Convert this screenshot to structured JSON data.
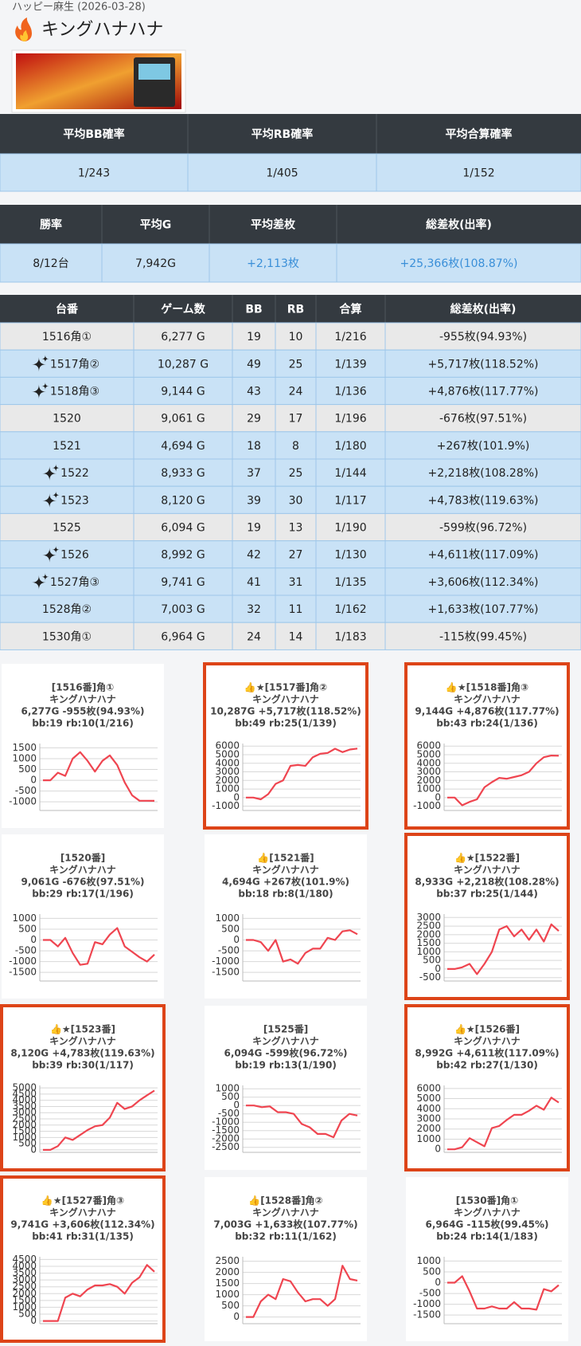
{
  "header": {
    "subtitle": "ハッピー麻生 (2026-03-28)",
    "title": "キングハナハナ"
  },
  "summary_rates": {
    "columns": [
      "平均BB確率",
      "平均RB確率",
      "平均合算確率"
    ],
    "row": [
      "1/243",
      "1/405",
      "1/152"
    ],
    "row_color": "#c9e2f6"
  },
  "summary_results": {
    "columns": [
      "勝率",
      "平均G",
      "平均差枚",
      "総差枚(出率)"
    ],
    "row": [
      "8/12台",
      "7,942G",
      "+2,113枚",
      "+25,366枚(108.87%)"
    ],
    "text_colors": [
      "#222222",
      "#222222",
      "#3a8fd8",
      "#3a8fd8"
    ],
    "row_color": "#c9e2f6"
  },
  "machines": {
    "columns": [
      "台番",
      "ゲーム数",
      "BB",
      "RB",
      "合算",
      "総差枚(出率)"
    ],
    "rows": [
      {
        "cells": [
          "1516角①",
          "6,277 G",
          "19",
          "10",
          "1/216",
          "-955枚(94.93%)"
        ],
        "color": "#e9e9e9",
        "icon": false
      },
      {
        "cells": [
          "1517角②",
          "10,287 G",
          "49",
          "25",
          "1/139",
          "+5,717枚(118.52%)"
        ],
        "color": "#c9e2f6",
        "icon": true
      },
      {
        "cells": [
          "1518角③",
          "9,144 G",
          "43",
          "24",
          "1/136",
          "+4,876枚(117.77%)"
        ],
        "color": "#c9e2f6",
        "icon": true
      },
      {
        "cells": [
          "1520",
          "9,061 G",
          "29",
          "17",
          "1/196",
          "-676枚(97.51%)"
        ],
        "color": "#e9e9e9",
        "icon": false
      },
      {
        "cells": [
          "1521",
          "4,694 G",
          "18",
          "8",
          "1/180",
          "+267枚(101.9%)"
        ],
        "color": "#c9e2f6",
        "icon": false
      },
      {
        "cells": [
          "1522",
          "8,933 G",
          "37",
          "25",
          "1/144",
          "+2,218枚(108.28%)"
        ],
        "color": "#c9e2f6",
        "icon": true
      },
      {
        "cells": [
          "1523",
          "8,120 G",
          "39",
          "30",
          "1/117",
          "+4,783枚(119.63%)"
        ],
        "color": "#c9e2f6",
        "icon": true
      },
      {
        "cells": [
          "1525",
          "6,094 G",
          "19",
          "13",
          "1/190",
          "-599枚(96.72%)"
        ],
        "color": "#e9e9e9",
        "icon": false
      },
      {
        "cells": [
          "1526",
          "8,992 G",
          "42",
          "27",
          "1/130",
          "+4,611枚(117.09%)"
        ],
        "color": "#c9e2f6",
        "icon": true
      },
      {
        "cells": [
          "1527角③",
          "9,741 G",
          "41",
          "31",
          "1/135",
          "+3,606枚(112.34%)"
        ],
        "color": "#c9e2f6",
        "icon": true
      },
      {
        "cells": [
          "1528角②",
          "7,003 G",
          "32",
          "11",
          "1/162",
          "+1,633枚(107.77%)"
        ],
        "color": "#c9e2f6",
        "icon": false
      },
      {
        "cells": [
          "1530角①",
          "6,964 G",
          "24",
          "14",
          "1/183",
          "-115枚(99.45%)"
        ],
        "color": "#e9e9e9",
        "icon": false
      }
    ]
  },
  "chart_data": [
    {
      "type": "line",
      "title": "[1516番]角①",
      "subtitle": "キングハナハナ",
      "stats": "6,277G -955枚(94.93%)",
      "detail": "bb:19 rb:10(1/216)",
      "highlight": false,
      "color": "#ef4550",
      "grid": true,
      "values": [
        0,
        0,
        350,
        200,
        1000,
        1300,
        900,
        400,
        900,
        1150,
        700,
        -100,
        -700,
        -950,
        -950,
        -955
      ],
      "ylim": [
        -1400,
        1700
      ],
      "yticks": [
        1500,
        1000,
        500,
        0,
        -500,
        -1000
      ]
    },
    {
      "type": "line",
      "title": "👍★[1517番]角②",
      "subtitle": "キングハナハナ",
      "stats": "10,287G +5,717枚(118.52%)",
      "detail": "bb:49 rb:25(1/139)",
      "highlight": true,
      "color": "#ef4550",
      "grid": true,
      "values": [
        0,
        0,
        -200,
        400,
        1600,
        2000,
        3700,
        3800,
        3700,
        4700,
        5100,
        5200,
        5700,
        5300,
        5600,
        5717
      ],
      "ylim": [
        -1500,
        6300
      ],
      "yticks": [
        6000,
        5000,
        4000,
        3000,
        2000,
        1000,
        0,
        -1000
      ]
    },
    {
      "type": "line",
      "title": "👍★[1518番]角③",
      "subtitle": "キングハナハナ",
      "stats": "9,144G +4,876枚(117.77%)",
      "detail": "bb:43 rb:24(1/136)",
      "highlight": true,
      "color": "#ef4550",
      "grid": true,
      "values": [
        0,
        0,
        -900,
        -500,
        -200,
        1200,
        1800,
        2300,
        2200,
        2400,
        2600,
        3000,
        4000,
        4700,
        4900,
        4876
      ],
      "ylim": [
        -1500,
        6300
      ],
      "yticks": [
        6000,
        5000,
        4000,
        3000,
        2000,
        1000,
        0,
        -1000
      ]
    },
    {
      "type": "line",
      "title": "[1520番]",
      "subtitle": "キングハナハナ",
      "stats": "9,061G -676枚(97.51%)",
      "detail": "bb:29 rb:17(1/196)",
      "highlight": false,
      "color": "#ef4550",
      "grid": true,
      "values": [
        0,
        0,
        -300,
        100,
        -600,
        -1150,
        -1100,
        -100,
        -200,
        250,
        550,
        -300,
        -550,
        -800,
        -1000,
        -676
      ],
      "ylim": [
        -1900,
        1200
      ],
      "yticks": [
        1000,
        500,
        0,
        -500,
        -1000,
        -1500
      ]
    },
    {
      "type": "line",
      "title": "👍[1521番]",
      "subtitle": "キングハナハナ",
      "stats": "4,694G +267枚(101.9%)",
      "detail": "bb:18 rb:8(1/180)",
      "highlight": false,
      "color": "#ef4550",
      "grid": true,
      "values": [
        0,
        0,
        -100,
        -500,
        0,
        -1000,
        -900,
        -1100,
        -600,
        -400,
        -400,
        100,
        0,
        400,
        450,
        267
      ],
      "ylim": [
        -1900,
        1200
      ],
      "yticks": [
        1000,
        500,
        0,
        -500,
        -1000,
        -1500
      ]
    },
    {
      "type": "line",
      "title": "👍★[1522番]",
      "subtitle": "キングハナハナ",
      "stats": "8,933G +2,218枚(108.28%)",
      "detail": "bb:37 rb:25(1/144)",
      "highlight": true,
      "color": "#ef4550",
      "grid": true,
      "values": [
        0,
        0,
        100,
        300,
        -300,
        300,
        1000,
        2300,
        2500,
        1900,
        2300,
        1700,
        2300,
        1600,
        2600,
        2218
      ],
      "ylim": [
        -700,
        3200
      ],
      "yticks": [
        3000,
        2500,
        2000,
        1500,
        1000,
        500,
        0,
        -500
      ]
    },
    {
      "type": "line",
      "title": "👍★[1523番]",
      "subtitle": "キングハナハナ",
      "stats": "8,120G +4,783枚(119.63%)",
      "detail": "bb:39 rb:30(1/117)",
      "highlight": true,
      "color": "#ef4550",
      "grid": true,
      "values": [
        0,
        0,
        300,
        1000,
        800,
        1200,
        1600,
        1900,
        2000,
        2600,
        3800,
        3300,
        3500,
        4000,
        4400,
        4783
      ],
      "ylim": [
        -200,
        5200
      ],
      "yticks": [
        5000,
        4500,
        4000,
        3500,
        3000,
        2500,
        2000,
        1500,
        1000,
        500,
        0
      ]
    },
    {
      "type": "line",
      "title": "[1525番]",
      "subtitle": "キングハナハナ",
      "stats": "6,094G -599枚(96.72%)",
      "detail": "bb:19 rb:13(1/190)",
      "highlight": false,
      "color": "#ef4550",
      "grid": true,
      "values": [
        0,
        0,
        -100,
        -50,
        -400,
        -400,
        -500,
        -1100,
        -1300,
        -1700,
        -1700,
        -1900,
        -900,
        -500,
        -599
      ],
      "ylim": [
        -2800,
        1200
      ],
      "yticks": [
        1000,
        500,
        0,
        -500,
        -1000,
        -1500,
        -2000,
        -2500
      ]
    },
    {
      "type": "line",
      "title": "👍★[1526番]",
      "subtitle": "キングハナハナ",
      "stats": "8,992G +4,611枚(117.09%)",
      "detail": "bb:42 rb:27(1/130)",
      "highlight": true,
      "color": "#ef4550",
      "grid": true,
      "values": [
        0,
        0,
        200,
        1100,
        700,
        300,
        2100,
        2300,
        2900,
        3400,
        3400,
        3800,
        4300,
        3900,
        5100,
        4611
      ],
      "ylim": [
        -300,
        6300
      ],
      "yticks": [
        6000,
        5000,
        4000,
        3000,
        2000,
        1000,
        0
      ]
    },
    {
      "type": "line",
      "title": "👍★[1527番]角③",
      "subtitle": "キングハナハナ",
      "stats": "9,741G +3,606枚(112.34%)",
      "detail": "bb:41 rb:31(1/135)",
      "highlight": true,
      "color": "#ef4550",
      "grid": true,
      "values": [
        0,
        0,
        0,
        1700,
        2000,
        1800,
        2300,
        2600,
        2600,
        2700,
        2500,
        2000,
        2800,
        3200,
        4100,
        3606
      ],
      "ylim": [
        -200,
        4700
      ],
      "yticks": [
        4500,
        4000,
        3500,
        3000,
        2500,
        2000,
        1500,
        1000,
        500,
        0
      ]
    },
    {
      "type": "line",
      "title": "👍[1528番]角②",
      "subtitle": "キングハナハナ",
      "stats": "7,003G +1,633枚(107.77%)",
      "detail": "bb:32 rb:11(1/162)",
      "highlight": false,
      "color": "#ef4550",
      "grid": true,
      "values": [
        0,
        0,
        700,
        1000,
        800,
        1700,
        1600,
        1100,
        700,
        800,
        800,
        500,
        800,
        2300,
        1700,
        1633
      ],
      "ylim": [
        -300,
        2700
      ],
      "yticks": [
        2500,
        2000,
        1500,
        1000,
        500,
        0
      ]
    },
    {
      "type": "line",
      "title": "[1530番]角①",
      "subtitle": "キングハナハナ",
      "stats": "6,964G -115枚(99.45%)",
      "detail": "bb:24 rb:14(1/183)",
      "highlight": false,
      "color": "#ef4550",
      "grid": true,
      "values": [
        0,
        0,
        300,
        -400,
        -1200,
        -1200,
        -1100,
        -1200,
        -1200,
        -900,
        -1200,
        -1200,
        -1250,
        -300,
        -400,
        -115
      ],
      "ylim": [
        -1900,
        1200
      ],
      "yticks": [
        1000,
        500,
        0,
        -500,
        -1000,
        -1500
      ]
    }
  ]
}
